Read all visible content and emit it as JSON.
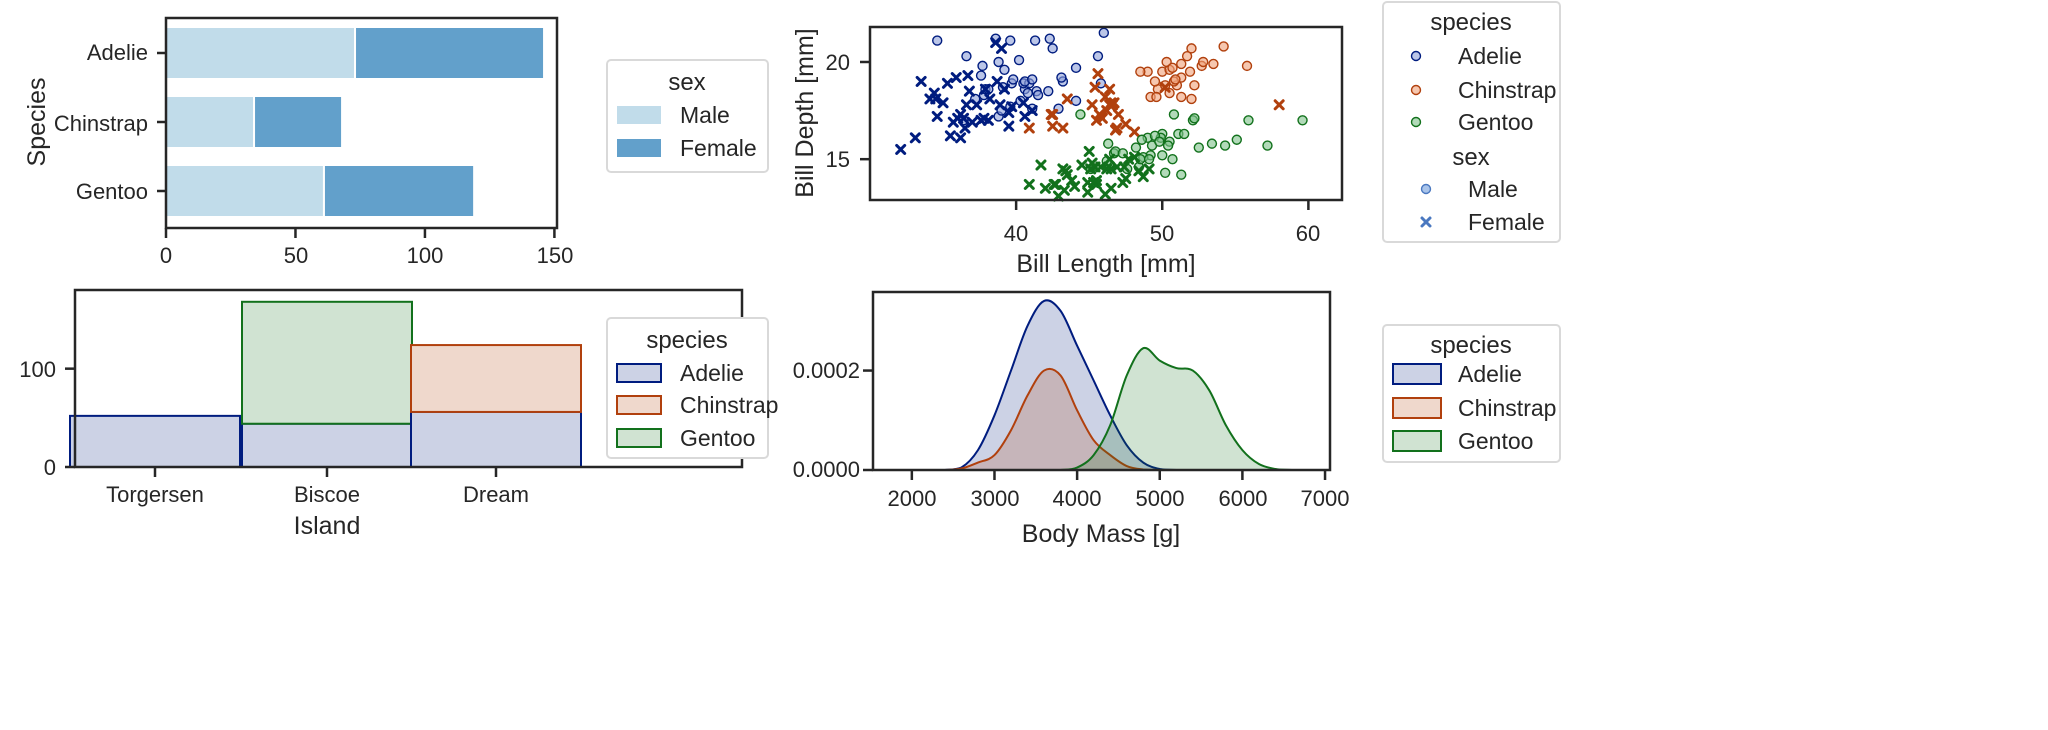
{
  "colors": {
    "Adelie": "#001c7f",
    "Chinstrap": "#b1400d",
    "Gentoo": "#12711c",
    "Adelie_fill": "#ccd2e5",
    "Chinstrap_fill": "#efd8cc",
    "Gentoo_fill": "#d0e3d2",
    "Male": "#c1dcea",
    "Female": "#62a0cb"
  },
  "chart_data": [
    {
      "type": "bar",
      "orientation": "horizontal",
      "stacked": true,
      "categories": [
        "Adelie",
        "Chinstrap",
        "Gentoo"
      ],
      "series": [
        {
          "name": "Male",
          "values": [
            73,
            34,
            61
          ]
        },
        {
          "name": "Female",
          "values": [
            73,
            34,
            58
          ]
        }
      ],
      "xlabel": "",
      "ylabel": "Species",
      "xlim": [
        0,
        151
      ],
      "xticks": [
        "0",
        "50",
        "100",
        "150"
      ],
      "legend": {
        "title": "sex",
        "entries": [
          "Male",
          "Female"
        ],
        "placement": "outside-right"
      }
    },
    {
      "type": "bar",
      "stacked": true,
      "categories": [
        "Torgersen",
        "Biscoe",
        "Dream"
      ],
      "series": [
        {
          "name": "Adelie",
          "values": [
            52,
            44,
            56
          ]
        },
        {
          "name": "Chinstrap",
          "values": [
            0,
            0,
            68
          ]
        },
        {
          "name": "Gentoo",
          "values": [
            0,
            124,
            0
          ]
        }
      ],
      "xlabel": "Island",
      "ylabel": "",
      "ylim": [
        0,
        180
      ],
      "yticks": [
        "0",
        "100"
      ],
      "legend": {
        "title": "species",
        "entries": [
          "Adelie",
          "Chinstrap",
          "Gentoo"
        ],
        "placement": "outside-right"
      }
    },
    {
      "type": "scatter",
      "xlabel": "Bill Length [mm]",
      "ylabel": "Bill Depth [mm]",
      "xlim": [
        30,
        62.3
      ],
      "ylim": [
        12.9,
        21.8
      ],
      "xticks": [
        "40",
        "50",
        "60"
      ],
      "yticks": [
        "15",
        "20"
      ],
      "legend": {
        "title": "species",
        "entries": [
          "Adelie",
          "Chinstrap",
          "Gentoo"
        ],
        "title2": "sex",
        "entries2": [
          "Male",
          "Female"
        ],
        "placement": "outside-right"
      },
      "series": [
        {
          "species": "Adelie",
          "sex": "Male",
          "points": [
            [
              39.1,
              18.7
            ],
            [
              40.3,
              18
            ],
            [
              39.2,
              19.6
            ],
            [
              38.6,
              21.2
            ],
            [
              42.5,
              20.7
            ],
            [
              37.8,
              18.3
            ],
            [
              41.1,
              17.6
            ],
            [
              38.8,
              17.2
            ],
            [
              39.7,
              18.9
            ],
            [
              42.2,
              18.5
            ],
            [
              39.6,
              17.7
            ],
            [
              40.6,
              18.6
            ],
            [
              40.5,
              18.9
            ],
            [
              37.2,
              18.1
            ],
            [
              40.9,
              18.9
            ],
            [
              36.4,
              17
            ],
            [
              42.9,
              17.6
            ],
            [
              41.3,
              21.1
            ],
            [
              45.8,
              18.9
            ],
            [
              43.2,
              19
            ],
            [
              44.1,
              19.7
            ],
            [
              39.8,
              19.1
            ],
            [
              41.4,
              18.5
            ],
            [
              40.6,
              19
            ],
            [
              38.8,
              20
            ],
            [
              37.9,
              18.6
            ],
            [
              45.6,
              20.3
            ],
            [
              42.3,
              21.2
            ],
            [
              46,
              21.5
            ],
            [
              44.1,
              18
            ],
            [
              41.5,
              18.3
            ],
            [
              43.1,
              19.2
            ],
            [
              37.7,
              19.8
            ],
            [
              39,
              17.5
            ],
            [
              38.1,
              18.6
            ],
            [
              40.2,
              20.1
            ],
            [
              39.6,
              21.1
            ],
            [
              36.6,
              20.3
            ],
            [
              34.6,
              21.1
            ],
            [
              37.6,
              19.3
            ],
            [
              41.1,
              19.1
            ],
            [
              40.8,
              18.4
            ]
          ]
        },
        {
          "species": "Adelie",
          "sex": "Female",
          "points": [
            [
              36.7,
              19.3
            ],
            [
              39.5,
              17.4
            ],
            [
              38.9,
              17.8
            ],
            [
              36.6,
              17.8
            ],
            [
              38.7,
              19
            ],
            [
              34.4,
              18.4
            ],
            [
              37.8,
              17.1
            ],
            [
              35.9,
              19.2
            ],
            [
              35.3,
              18.9
            ],
            [
              40.5,
              17.9
            ],
            [
              37.9,
              18.6
            ],
            [
              39.5,
              16.7
            ],
            [
              36.2,
              17.3
            ],
            [
              34.6,
              17.2
            ],
            [
              36.8,
              18.5
            ],
            [
              35.7,
              16.9
            ],
            [
              32.1,
              15.5
            ],
            [
              33.1,
              16.1
            ],
            [
              35,
              17.9
            ],
            [
              34.5,
              18.1
            ],
            [
              36,
              17.1
            ],
            [
              37.3,
              17.8
            ],
            [
              38.1,
              17
            ],
            [
              36.2,
              16.1
            ],
            [
              37.6,
              17
            ],
            [
              35.5,
              16.2
            ],
            [
              39.2,
              18.6
            ],
            [
              34.1,
              18.1
            ],
            [
              33.5,
              19
            ],
            [
              36.4,
              17.1
            ],
            [
              38.2,
              18.1
            ],
            [
              40.6,
              17.2
            ],
            [
              39.7,
              17.7
            ],
            [
              37,
              16.9
            ],
            [
              38.6,
              21
            ],
            [
              39,
              20.7
            ],
            [
              36.5,
              16.6
            ],
            [
              41.1,
              17.5
            ]
          ]
        },
        {
          "species": "Chinstrap",
          "sex": "Male",
          "points": [
            [
              50,
              19.5
            ],
            [
              51.3,
              19.2
            ],
            [
              52.7,
              19.8
            ],
            [
              51.3,
              18.2
            ],
            [
              51.3,
              19.9
            ],
            [
              51.7,
              20.3
            ],
            [
              52,
              18.1
            ],
            [
              50.5,
              19.6
            ],
            [
              50.3,
              20
            ],
            [
              49.2,
              18.2
            ],
            [
              52.8,
              20
            ],
            [
              54.2,
              20.8
            ],
            [
              51,
              18.8
            ],
            [
              49.7,
              18.6
            ],
            [
              52,
              20.7
            ],
            [
              53.5,
              19.9
            ],
            [
              49,
              19.5
            ],
            [
              50.8,
              19
            ],
            [
              50.9,
              19.1
            ],
            [
              49.6,
              18.2
            ],
            [
              50.5,
              18.4
            ],
            [
              55.8,
              19.8
            ],
            [
              51.9,
              19.5
            ],
            [
              52.2,
              18.8
            ],
            [
              50.2,
              18.8
            ],
            [
              49.5,
              19
            ],
            [
              48.5,
              19.5
            ],
            [
              50.7,
              19.7
            ]
          ]
        },
        {
          "species": "Chinstrap",
          "sex": "Female",
          "points": [
            [
              46.5,
              17.9
            ],
            [
              45.4,
              18.7
            ],
            [
              45.2,
              17.8
            ],
            [
              46.1,
              18.2
            ],
            [
              46.4,
              18.6
            ],
            [
              42.5,
              17.3
            ],
            [
              45.5,
              17
            ],
            [
              46.9,
              16.6
            ],
            [
              40.9,
              16.6
            ],
            [
              42.4,
              17.3
            ],
            [
              43.2,
              16.6
            ],
            [
              46.7,
              17.9
            ],
            [
              47,
              17.3
            ],
            [
              45.9,
              17.1
            ],
            [
              46.2,
              17.5
            ],
            [
              46.8,
              16.5
            ],
            [
              45.7,
              17.3
            ],
            [
              58,
              17.8
            ],
            [
              42.5,
              16.7
            ],
            [
              46.6,
              17.8
            ],
            [
              45.6,
              19.4
            ],
            [
              46.4,
              17.8
            ],
            [
              48.1,
              16.4
            ],
            [
              50.2,
              18.7
            ],
            [
              43.5,
              18.1
            ],
            [
              47.5,
              16.8
            ]
          ]
        },
        {
          "species": "Gentoo",
          "sex": "Male",
          "points": [
            [
              50,
              16.3
            ],
            [
              50,
              15.2
            ],
            [
              47.6,
              14.5
            ],
            [
              46.7,
              15.3
            ],
            [
              46.8,
              15.4
            ],
            [
              49,
              16.1
            ],
            [
              48.4,
              14.6
            ],
            [
              49.3,
              15.7
            ],
            [
              49.2,
              15.2
            ],
            [
              48.7,
              15.1
            ],
            [
              50.2,
              14.3
            ],
            [
              45.1,
              14.5
            ],
            [
              46.3,
              15.8
            ],
            [
              50.8,
              17.3
            ],
            [
              52.1,
              17
            ],
            [
              50.5,
              15.9
            ],
            [
              51.1,
              16.3
            ],
            [
              55.9,
              17
            ],
            [
              49.9,
              16.1
            ],
            [
              54.3,
              15.7
            ],
            [
              52.5,
              15.6
            ],
            [
              59.6,
              17
            ],
            [
              55.1,
              16
            ],
            [
              53.4,
              15.8
            ],
            [
              49.5,
              16.2
            ],
            [
              48.2,
              15.6
            ],
            [
              51.5,
              16.3
            ],
            [
              47.3,
              15.3
            ],
            [
              50.4,
              15.7
            ],
            [
              57.2,
              15.7
            ],
            [
              50.7,
              15
            ],
            [
              48.6,
              16
            ],
            [
              51.3,
              14.2
            ],
            [
              44.4,
              17.3
            ],
            [
              49.8,
              15.9
            ],
            [
              46.2,
              14.9
            ],
            [
              48.5,
              15
            ],
            [
              52.2,
              17.1
            ],
            [
              49.1,
              15
            ]
          ]
        },
        {
          "species": "Gentoo",
          "sex": "Female",
          "points": [
            [
              46.1,
              13.2
            ],
            [
              48.7,
              14.1
            ],
            [
              46.5,
              13.5
            ],
            [
              45.4,
              14.6
            ],
            [
              43.3,
              13.4
            ],
            [
              40.9,
              13.7
            ],
            [
              45.5,
              13.7
            ],
            [
              45.8,
              14.6
            ],
            [
              42,
              13.5
            ],
            [
              46.2,
              14.5
            ],
            [
              45.1,
              14.5
            ],
            [
              46.5,
              14.5
            ],
            [
              42.9,
              13.1
            ],
            [
              44.9,
              13.3
            ],
            [
              43.5,
              14.2
            ],
            [
              46.9,
              14.6
            ],
            [
              47.5,
              14
            ],
            [
              48.4,
              14.4
            ],
            [
              45.3,
              13.8
            ],
            [
              43.4,
              14.4
            ],
            [
              43.2,
              14.5
            ],
            [
              42.7,
              13.7
            ],
            [
              45.2,
              14.8
            ],
            [
              47.4,
              14.6
            ],
            [
              49.1,
              14.5
            ],
            [
              44,
              13.6
            ],
            [
              41.7,
              14.7
            ],
            [
              43.8,
              13.9
            ],
            [
              42.6,
              13.7
            ],
            [
              44.5,
              14.7
            ],
            [
              47.3,
              13.8
            ],
            [
              44.9,
              13.8
            ],
            [
              45.5,
              13.9
            ],
            [
              46.4,
              15
            ],
            [
              48.1,
              15.1
            ],
            [
              45,
              15.4
            ],
            [
              47.7,
              15
            ]
          ]
        }
      ]
    },
    {
      "type": "area",
      "kind": "kde",
      "xlabel": "Body Mass [g]",
      "ylabel": "",
      "xlim": [
        1530,
        7060
      ],
      "ylim": [
        0,
        0.000358
      ],
      "xticks": [
        "2000",
        "3000",
        "4000",
        "5000",
        "6000",
        "7000"
      ],
      "yticks": [
        "0.0000",
        "0.0002"
      ],
      "legend": {
        "title": "species",
        "entries": [
          "Adelie",
          "Chinstrap",
          "Gentoo"
        ],
        "placement": "outside-right"
      },
      "x": [
        2400,
        2600,
        2800,
        3000,
        3200,
        3400,
        3600,
        3800,
        4000,
        4200,
        4400,
        4600,
        4800,
        5000,
        5200,
        5400,
        5600,
        5800,
        6000,
        6200,
        6400,
        6600
      ],
      "series": [
        {
          "name": "Adelie",
          "values": [
            0,
            5e-06,
            4e-05,
            0.00011,
            0.0002,
            0.00029,
            0.00034,
            0.00032,
            0.00025,
            0.00018,
            0.00011,
            5e-05,
            1.5e-05,
            2e-06,
            0,
            0,
            0,
            0,
            0,
            0,
            0,
            0
          ]
        },
        {
          "name": "Chinstrap",
          "values": [
            0,
            3e-06,
            1.5e-05,
            3e-05,
            8e-05,
            0.00015,
            0.0002,
            0.00019,
            0.00012,
            6e-05,
            3e-05,
            8e-06,
            1e-06,
            0,
            0,
            0,
            0,
            0,
            0,
            0,
            0,
            0
          ]
        },
        {
          "name": "Gentoo",
          "values": [
            0,
            0,
            0,
            0,
            0,
            0,
            0,
            0,
            5e-06,
            3e-05,
            9e-05,
            0.00019,
            0.000245,
            0.00022,
            0.000205,
            0.0002,
            0.00016,
            9e-05,
            4e-05,
            1.2e-05,
            2e-06,
            0
          ]
        }
      ]
    }
  ]
}
